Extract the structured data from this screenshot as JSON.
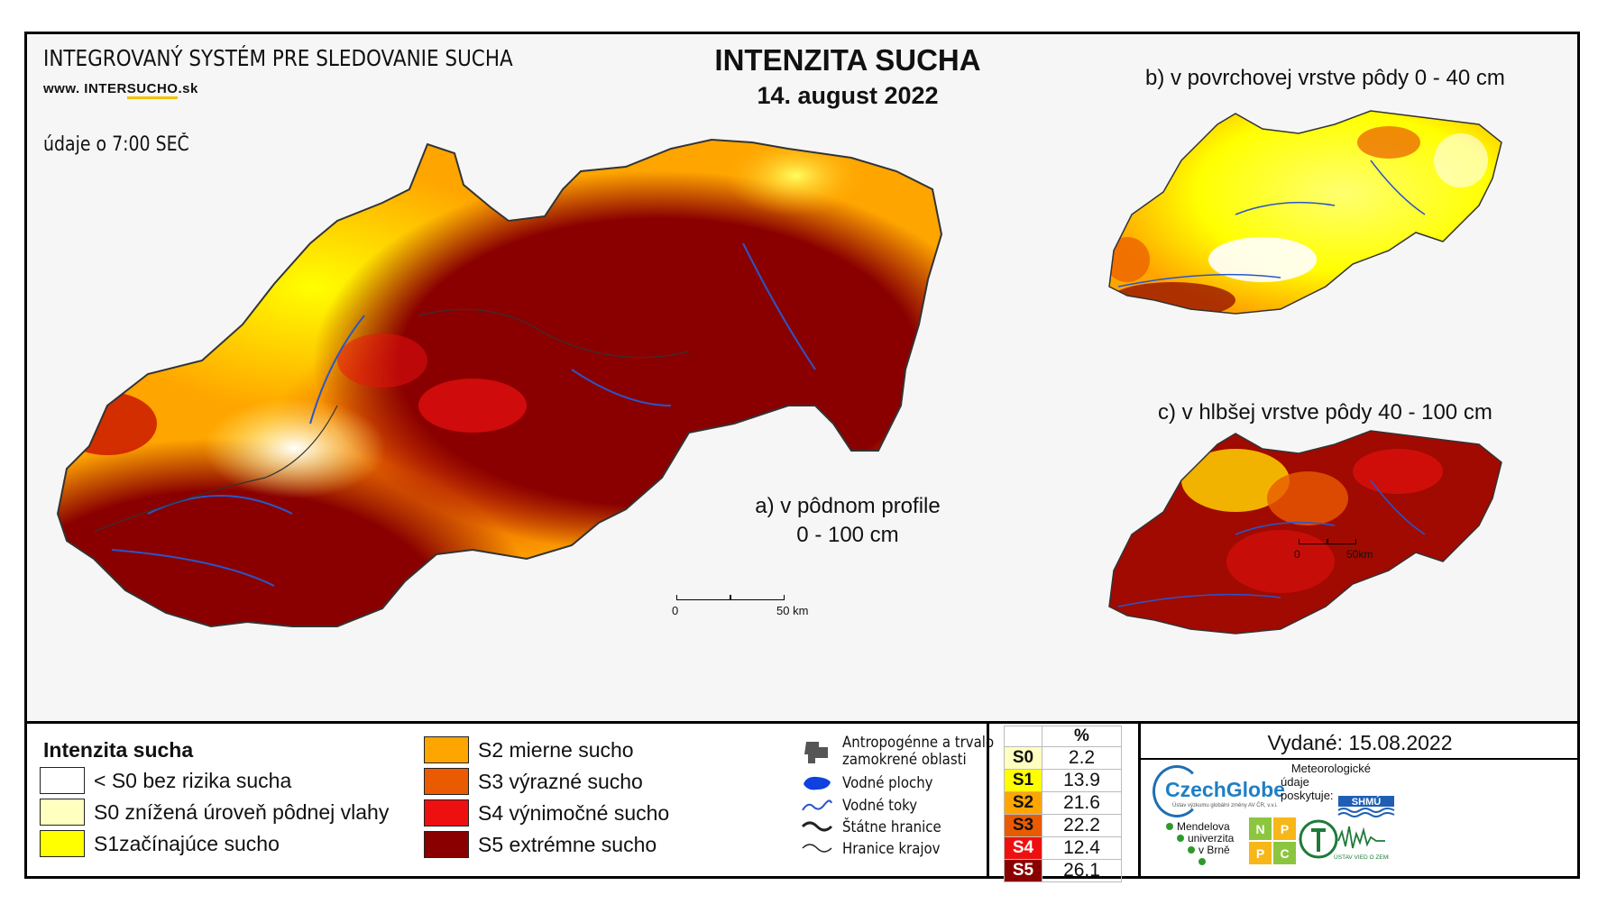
{
  "header": {
    "system_title": "INTEGROVANÝ SYSTÉM PRE SLEDOVANIE SUCHA",
    "website_prefix": "www. INTER",
    "website_highlight": "SUCHO",
    "website_suffix": ".sk",
    "data_time": "údaje o 7:00 SEČ",
    "title": "INTENZITA SUCHA",
    "date": "14. august 2022"
  },
  "maps": {
    "main_label_line1": "a) v pôdnom profile",
    "main_label_line2": "0 - 100 cm",
    "top_label": "b) v povrchovej vrstve pôdy 0 - 40 cm",
    "bottom_label": "c) v hlbšej vrstve pôdy 40 - 100 cm",
    "main_scale_start": "0",
    "main_scale_end": "50 km",
    "small_scale_start": "0",
    "small_scale_end": "50km"
  },
  "legend": {
    "title": "Intenzita sucha",
    "classes": [
      {
        "label": "< S0 bez rizika sucha",
        "color": "#ffffff"
      },
      {
        "label": "S0 znížená úroveň pôdnej vlahy",
        "color": "#ffffc0"
      },
      {
        "label": "S1začínajúce sucho",
        "color": "#ffff00"
      },
      {
        "label": "S2 mierne sucho",
        "color": "#ffa500"
      },
      {
        "label": "S3 výrazné sucho",
        "color": "#ea5a00"
      },
      {
        "label": "S4 výnimočné sucho",
        "color": "#ee1010"
      },
      {
        "label": "S5 extrémne sucho",
        "color": "#8a0000"
      }
    ],
    "symbols": [
      {
        "label_line1": "Antropogénne a trvalo",
        "label_line2": "zamokrené oblasti",
        "icon": "grey-patch-icon"
      },
      {
        "label_line1": "Vodné plochy",
        "icon": "water-body-icon"
      },
      {
        "label_line1": "Vodné toky",
        "icon": "river-icon"
      },
      {
        "label_line1": "Štátne hranice",
        "icon": "state-border-icon"
      },
      {
        "label_line1": "Hranice krajov",
        "icon": "region-border-icon"
      }
    ]
  },
  "percent_table": {
    "header": "%",
    "rows": [
      {
        "class": "S0",
        "value": "2.2",
        "color": "#ffffc0"
      },
      {
        "class": "S1",
        "value": "13.9",
        "color": "#ffff00"
      },
      {
        "class": "S2",
        "value": "21.6",
        "color": "#ffa500"
      },
      {
        "class": "S3",
        "value": "22.2",
        "color": "#ea5a00"
      },
      {
        "class": "S4",
        "value": "12.4",
        "color": "#ee1010"
      },
      {
        "class": "S5",
        "value": "26.1",
        "color": "#8a0000"
      }
    ]
  },
  "credits": {
    "issued": "Vydané: 15.08.2022",
    "czechglobe": "CzechGlobe",
    "czechglobe_sub": "Ústav výzkumu globální změny AV ČR, v.v.i.",
    "meteo_line1": "Meteorologické",
    "meteo_line2": "údaje",
    "meteo_line3": "poskytuje:",
    "shmu": "SHMÚ",
    "mendel_line1": "Mendelova",
    "mendel_line2": "univerzita",
    "mendel_line3": "v Brně",
    "npc": [
      "N",
      "P",
      "P",
      "C"
    ],
    "uvz": "ÚSTAV VIED O ZEMI"
  }
}
